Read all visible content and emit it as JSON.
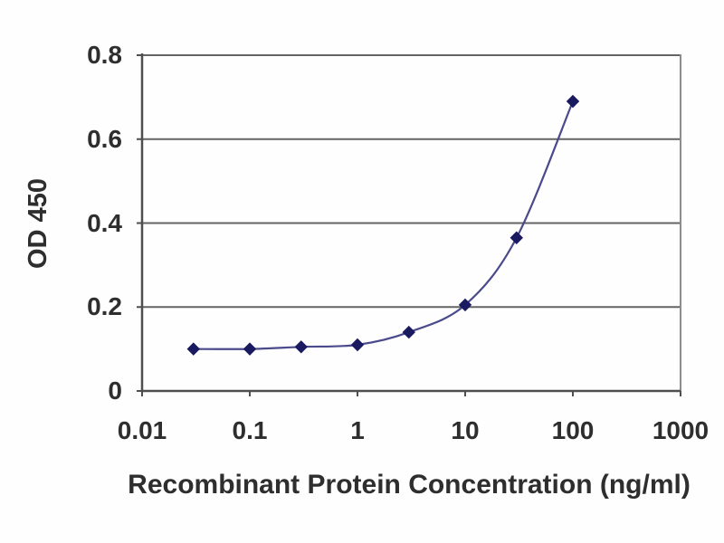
{
  "chart_data": {
    "type": "line",
    "title": "",
    "xlabel": "Recombinant Protein Concentration (ng/ml)",
    "ylabel": "OD 450",
    "x_scale": "log",
    "xlim": [
      0.01,
      1000
    ],
    "ylim": [
      0,
      0.8
    ],
    "x_ticks": [
      0.01,
      0.1,
      1,
      10,
      100,
      1000
    ],
    "x_tick_labels": [
      "0.01",
      "0.1",
      "1",
      "10",
      "100",
      "1000"
    ],
    "y_ticks": [
      0,
      0.2,
      0.4,
      0.6,
      0.8
    ],
    "y_tick_labels": [
      "0",
      "0.2",
      "0.4",
      "0.6",
      "0.8"
    ],
    "grid": "horizontal",
    "legend": "none",
    "series": [
      {
        "x": [
          0.03,
          0.1,
          0.3,
          1,
          3,
          10,
          30,
          100
        ],
        "y": [
          0.1,
          0.1,
          0.105,
          0.11,
          0.14,
          0.205,
          0.365,
          0.69
        ],
        "marker": "diamond"
      }
    ],
    "colors": {
      "line": "#4a4a8c",
      "marker": "#1a1a60",
      "axis": "#4f4f4f",
      "grid": "#646464",
      "frame": "#8c8c8c",
      "text": "#2e2e2e",
      "background": "#ffffff"
    }
  }
}
